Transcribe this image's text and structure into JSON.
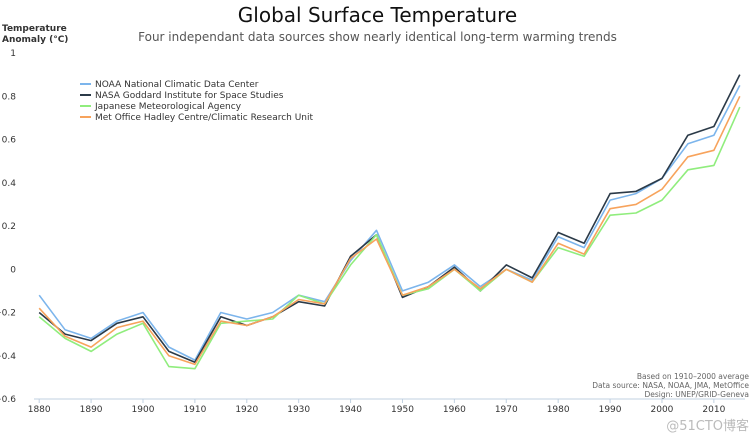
{
  "chart_data": {
    "type": "line",
    "title": "Global Surface Temperature",
    "subtitle": "Four independant data sources show nearly identical long-term warming trends",
    "ylabel_line1": "Temperature",
    "ylabel_line2": "Anomaly (°C)",
    "xlabel": "",
    "ylim": [
      -0.6,
      1.0
    ],
    "xlim": [
      1879,
      2016
    ],
    "yticks": [
      "1",
      "0.8",
      "0.6",
      "0.4",
      "0.2",
      "0",
      "−0.2",
      "−0.4",
      "−0.6"
    ],
    "ytick_values": [
      1,
      0.8,
      0.6,
      0.4,
      0.2,
      0,
      -0.2,
      -0.4,
      -0.6
    ],
    "xticks": [
      "1880",
      "1890",
      "1900",
      "1910",
      "1920",
      "1930",
      "1940",
      "1950",
      "1960",
      "1970",
      "1980",
      "1990",
      "2000",
      "2010"
    ],
    "xtick_values": [
      1880,
      1890,
      1900,
      1910,
      1920,
      1930,
      1940,
      1950,
      1960,
      1970,
      1980,
      1990,
      2000,
      2010
    ],
    "legend_position": "top-left",
    "notes": [
      "Based on 1910–2000 average",
      "Data source: NASA, NOAA, JMA, MetOffice",
      "Design: UNEP/GRID-Geneva"
    ],
    "series": [
      {
        "name": "NOAA National Climatic Data Center",
        "color": "#7cb5ec",
        "x": [
          1880,
          1885,
          1890,
          1895,
          1900,
          1905,
          1910,
          1915,
          1920,
          1925,
          1930,
          1935,
          1940,
          1945,
          1950,
          1955,
          1960,
          1965,
          1970,
          1975,
          1980,
          1985,
          1990,
          1995,
          2000,
          2005,
          2010,
          2015
        ],
        "values": [
          -0.12,
          -0.28,
          -0.32,
          -0.24,
          -0.2,
          -0.36,
          -0.42,
          -0.2,
          -0.23,
          -0.2,
          -0.12,
          -0.15,
          0.04,
          0.18,
          -0.1,
          -0.06,
          0.02,
          -0.08,
          0.0,
          -0.05,
          0.15,
          0.1,
          0.32,
          0.35,
          0.42,
          0.58,
          0.62,
          0.85
        ]
      },
      {
        "name": "NASA Goddard Institute for Space Studies",
        "color": "#2b3a48",
        "x": [
          1880,
          1885,
          1890,
          1895,
          1900,
          1905,
          1910,
          1915,
          1920,
          1925,
          1930,
          1935,
          1940,
          1945,
          1950,
          1955,
          1960,
          1965,
          1970,
          1975,
          1980,
          1985,
          1990,
          1995,
          2000,
          2005,
          2010,
          2015
        ],
        "values": [
          -0.2,
          -0.3,
          -0.33,
          -0.25,
          -0.22,
          -0.38,
          -0.43,
          -0.22,
          -0.26,
          -0.22,
          -0.15,
          -0.17,
          0.06,
          0.16,
          -0.13,
          -0.08,
          0.01,
          -0.1,
          0.02,
          -0.04,
          0.17,
          0.12,
          0.35,
          0.36,
          0.42,
          0.62,
          0.66,
          0.9
        ]
      },
      {
        "name": "Japanese Meteorological Agency",
        "color": "#90ed7d",
        "x": [
          1880,
          1885,
          1890,
          1895,
          1900,
          1905,
          1910,
          1915,
          1920,
          1925,
          1930,
          1935,
          1940,
          1945,
          1950,
          1955,
          1960,
          1965,
          1970,
          1975,
          1980,
          1985,
          1990,
          1995,
          2000,
          2005,
          2010,
          2015
        ],
        "values": [
          -0.22,
          -0.32,
          -0.38,
          -0.3,
          -0.25,
          -0.45,
          -0.46,
          -0.25,
          -0.24,
          -0.23,
          -0.12,
          -0.16,
          0.02,
          0.16,
          -0.12,
          -0.09,
          0.0,
          -0.1,
          0.0,
          -0.06,
          0.1,
          0.06,
          0.25,
          0.26,
          0.32,
          0.46,
          0.48,
          0.75
        ]
      },
      {
        "name": "Met Office Hadley Centre/Climatic Research Unit",
        "color": "#f7a35c",
        "x": [
          1880,
          1885,
          1890,
          1895,
          1900,
          1905,
          1910,
          1915,
          1920,
          1925,
          1930,
          1935,
          1940,
          1945,
          1950,
          1955,
          1960,
          1965,
          1970,
          1975,
          1980,
          1985,
          1990,
          1995,
          2000,
          2005,
          2010,
          2015
        ],
        "values": [
          -0.18,
          -0.31,
          -0.36,
          -0.27,
          -0.24,
          -0.4,
          -0.44,
          -0.24,
          -0.26,
          -0.22,
          -0.14,
          -0.16,
          0.05,
          0.14,
          -0.12,
          -0.08,
          0.0,
          -0.09,
          0.0,
          -0.06,
          0.12,
          0.07,
          0.28,
          0.3,
          0.37,
          0.52,
          0.55,
          0.8
        ]
      }
    ]
  },
  "watermark": "@51CTO博客"
}
